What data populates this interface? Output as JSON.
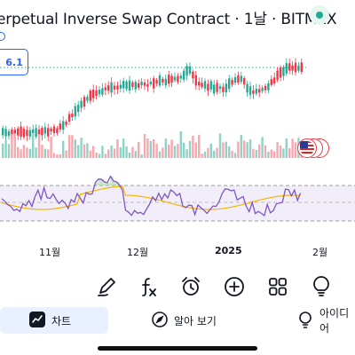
{
  "header": {
    "title": "erpetual Inverse Swap Contract · 1날 · BITMEX"
  },
  "price_tag": {
    "text": "6.1"
  },
  "xaxis": {
    "labels": [
      "11월",
      "12월",
      "2025",
      "2월"
    ]
  },
  "toolbar": {
    "icons": [
      "pen-icon",
      "fx-icon",
      "alarm-icon",
      "plus-circle-icon",
      "grid-icon",
      "lightbulb-icon"
    ]
  },
  "tabs": {
    "chart_label": "차트",
    "explore_label": "알아 보기",
    "ideas_label": "아이디어"
  },
  "colors": {
    "up": "#22ab94",
    "down": "#f23645",
    "accent": "#2962ff",
    "rsi": "#7e57c2",
    "rsi_ma": "#f7b500"
  }
}
